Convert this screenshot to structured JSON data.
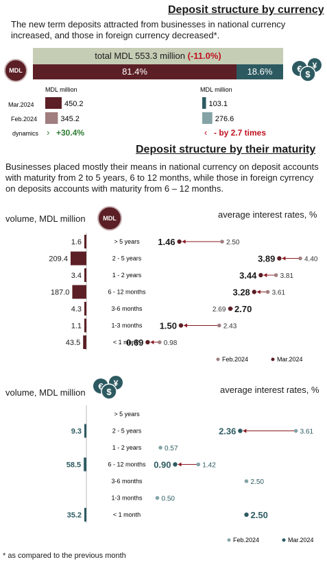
{
  "section1": {
    "title": "Deposit structure by currency",
    "intro": "The new term deposits attracted from businesses in national currency increased, and those in foreign currency decreased*.",
    "total_label": "total MDL 553.3 million",
    "total_change": "(-11.0%)",
    "mdl_badge": "MDL",
    "unit_left": "MDL million",
    "unit_right": "MDL million",
    "dynamics_label": "dynamics",
    "mdl_dynamics": "+30.4%",
    "fx_dynamics": "- by 2.7 times"
  },
  "section2": {
    "title": "Deposit structure by their maturity",
    "intro": "Businesses placed mostly their means in national currency on deposit accounts with maturity from 2 to 5 years,  6 to 12 months, while those in foreign cyrrency on deposits accounts with maturity from 6 – 12 months.",
    "mdl_badge": "MDL",
    "volume_label_top": "volume, MDL million",
    "rates_label_top": "average interest rates, %",
    "volume_label_bottom": "volume, MDL million",
    "rates_label_bottom": "average interest rates, %",
    "legend_feb": "Feb.2024",
    "legend_mar": "Mar.2024"
  },
  "footnote": "* as compared to the previous month",
  "colors": {
    "mdl": "#5b1f25",
    "mdl_light": "#a07d7f",
    "fx": "#2d5a61",
    "fx_light": "#83a3a6",
    "total_bg": "#c5cdb5",
    "positive": "#2e7d32",
    "negative": "#c0111f"
  },
  "chart_data": [
    {
      "type": "bar",
      "id": "currency-share",
      "categories": [
        "MDL",
        "foreign currency"
      ],
      "values": [
        81.4,
        18.6
      ],
      "value_labels": [
        "81.4%",
        "18.6%"
      ]
    },
    {
      "type": "bar",
      "id": "mdl-volume",
      "categories": [
        "Mar.2024",
        "Feb.2024"
      ],
      "values": [
        450.2,
        345.2
      ]
    },
    {
      "type": "bar",
      "id": "fx-volume",
      "categories": [
        "Mar.2024",
        "Feb.2024"
      ],
      "values": [
        103.1,
        276.6
      ]
    },
    {
      "type": "bar",
      "id": "mdl-maturity-volume",
      "categories": [
        "> 5 years",
        "2 - 5 years",
        "1 - 2 years",
        "6 - 12 months",
        "3-6 months",
        "1-3 months",
        "< 1 month"
      ],
      "values": [
        1.6,
        209.4,
        3.4,
        187.0,
        4.3,
        1.1,
        43.5
      ],
      "value_labels": [
        "1.6",
        "209.4",
        "3.4",
        "187.0",
        "4.3",
        "1.1",
        "43.5"
      ]
    },
    {
      "type": "scatter",
      "id": "mdl-maturity-rates",
      "categories": [
        "> 5 years",
        "2 - 5 years",
        "1 - 2 years",
        "6 - 12 months",
        "3-6 months",
        "1-3 months",
        "< 1 month"
      ],
      "series": [
        {
          "name": "Feb.2024",
          "values": [
            2.5,
            4.4,
            3.81,
            3.61,
            2.69,
            2.43,
            0.98
          ],
          "labels": [
            "2.50",
            "4.40",
            "3.81",
            "3.61",
            "2.69",
            "2.43",
            "0.98"
          ]
        },
        {
          "name": "Mar.2024",
          "values": [
            1.46,
            3.89,
            3.44,
            3.28,
            2.7,
            1.5,
            0.69
          ],
          "labels": [
            "1.46",
            "3.89",
            "3.44",
            "3.28",
            "2.70",
            "1.50",
            "0.69"
          ]
        }
      ]
    },
    {
      "type": "bar",
      "id": "fx-maturity-volume",
      "categories": [
        "> 5 years",
        "2 - 5 years",
        "1 - 2 years",
        "6 - 12 months",
        "3-6 months",
        "1-3 months",
        "< 1 month"
      ],
      "values": [
        null,
        9.3,
        null,
        58.5,
        null,
        null,
        35.2
      ],
      "value_labels": [
        "",
        "9.3",
        "",
        "58.5",
        "",
        "",
        "35.2"
      ]
    },
    {
      "type": "scatter",
      "id": "fx-maturity-rates",
      "categories": [
        "> 5 years",
        "2 - 5 years",
        "1 - 2 years",
        "6 - 12 months",
        "3-6 months",
        "1-3 months",
        "< 1 month"
      ],
      "series": [
        {
          "name": "Feb.2024",
          "values": [
            null,
            3.61,
            0.57,
            1.42,
            2.5,
            0.5,
            2.5
          ],
          "labels": [
            "",
            "3.61",
            "0.57",
            "1.42",
            "2.50",
            "0.50",
            ""
          ]
        },
        {
          "name": "Mar.2024",
          "values": [
            null,
            2.36,
            null,
            0.9,
            null,
            null,
            2.5
          ],
          "labels": [
            "",
            "2.36",
            "",
            "0.90",
            "",
            "",
            "2.50"
          ]
        }
      ]
    }
  ]
}
